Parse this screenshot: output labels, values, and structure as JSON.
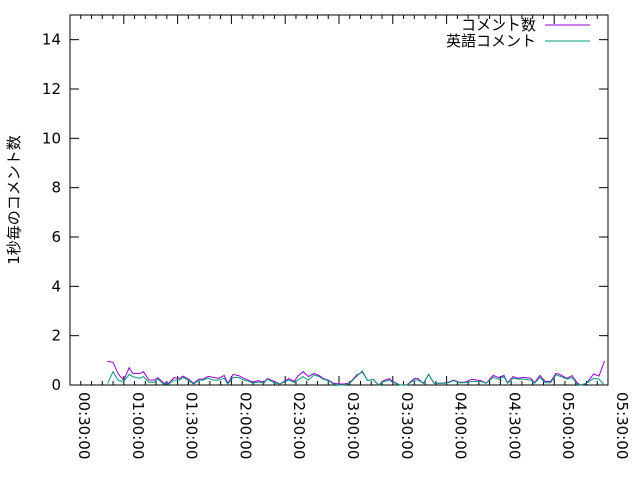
{
  "chart_data": {
    "type": "line",
    "title": "",
    "xlabel": "",
    "ylabel": "1秒毎のコメント数",
    "xlim": [
      "00:30:00",
      "05:30:00"
    ],
    "ylim": [
      0,
      15
    ],
    "x_ticks": [
      "00:30:00",
      "01:00:00",
      "01:30:00",
      "02:00:00",
      "02:30:00",
      "03:00:00",
      "03:30:00",
      "04:00:00",
      "04:30:00",
      "05:00:00",
      "05:30:00"
    ],
    "y_ticks": [
      "0",
      "2",
      "4",
      "6",
      "8",
      "10",
      "12",
      "14"
    ],
    "grid": false,
    "legend": "top-right",
    "x": [
      "00:51:00",
      "00:54:00",
      "00:57:00",
      "01:00:00",
      "01:03:00",
      "01:05:00",
      "01:09:00",
      "01:11:00",
      "01:14:00",
      "01:17:00",
      "01:19:00",
      "01:22:00",
      "01:25:00",
      "01:28:00",
      "01:31:00",
      "01:33:00",
      "01:36:00",
      "01:39:00",
      "01:42:00",
      "01:44:00",
      "01:47:00",
      "01:50:00",
      "01:53:00",
      "01:56:00",
      "01:58:00",
      "02:01:00",
      "02:04:00",
      "02:07:00",
      "02:10:00",
      "02:12:00",
      "02:15:00",
      "02:18:00",
      "02:20:00",
      "02:24:00",
      "02:27:00",
      "02:32:00",
      "02:35:00",
      "02:37:00",
      "02:40:00",
      "02:43:00",
      "02:46:00",
      "02:49:00",
      "02:51:00",
      "02:54:00",
      "02:57:00",
      "03:00:00",
      "03:03:00",
      "03:06:00",
      "03:10:00",
      "03:13:00",
      "03:16:00",
      "03:19:00",
      "03:22:00",
      "03:25:00",
      "03:28:00",
      "03:30:00",
      "03:34:00",
      "03:38:00",
      "03:42:00",
      "03:44:00",
      "03:47:00",
      "03:50:00",
      "03:53:00",
      "03:56:00",
      "04:00:00",
      "04:04:00",
      "04:07:00",
      "04:10:00",
      "04:14:00",
      "04:19:00",
      "04:22:00",
      "04:26:00",
      "04:29:00",
      "04:32:00",
      "04:34:00",
      "04:37:00",
      "04:40:00",
      "04:43:00",
      "04:47:00",
      "04:49:00",
      "04:52:00",
      "04:55:00",
      "04:58:00",
      "05:01:00",
      "05:03:00",
      "05:07:00",
      "05:10:00",
      "05:13:00",
      "05:15:00",
      "05:18:00",
      "05:22:00",
      "05:25:00",
      "05:28:00"
    ],
    "series": [
      {
        "name": "コメント数",
        "color": "#9400d3",
        "values": [
          0.96,
          0.92,
          0.43,
          0.2,
          0.7,
          0.47,
          0.47,
          0.54,
          0.2,
          0.2,
          0.3,
          0.09,
          0.07,
          0.3,
          0.26,
          0.36,
          0.24,
          0.07,
          0.24,
          0.23,
          0.35,
          0.31,
          0.27,
          0.39,
          0.07,
          0.43,
          0.38,
          0.27,
          0.18,
          0.11,
          0.18,
          0.11,
          0.26,
          0.14,
          0.04,
          0.26,
          0.14,
          0.36,
          0.54,
          0.34,
          0.47,
          0.38,
          0.27,
          0.2,
          0.07,
          0.04,
          0.04,
          0.09,
          0.41,
          0.53,
          0.18,
          0.23,
          0,
          0.18,
          0.26,
          0.14,
          0,
          0.01,
          0.26,
          0.26,
          0.07,
          0.43,
          0.07,
          0.07,
          0.09,
          0.2,
          0.11,
          0.11,
          0.23,
          0.18,
          0.07,
          0.39,
          0.3,
          0.39,
          0.09,
          0.34,
          0.27,
          0.31,
          0.27,
          0.09,
          0.39,
          0.14,
          0.14,
          0.47,
          0.43,
          0.27,
          0.38,
          0.07,
          0,
          0.07,
          0.45,
          0.36,
          0.96
        ]
      },
      {
        "name": "英語コメント",
        "color": "#009e73",
        "values": [
          0.07,
          0.54,
          0.18,
          0.15,
          0.43,
          0.34,
          0.27,
          0.34,
          0.11,
          0.11,
          0.24,
          0.04,
          0.04,
          0.2,
          0.2,
          0.31,
          0.18,
          0.04,
          0.2,
          0.2,
          0.28,
          0.2,
          0.2,
          0.27,
          0.04,
          0.31,
          0.3,
          0.2,
          0.15,
          0.07,
          0.12,
          0.07,
          0.24,
          0.09,
          0.04,
          0.2,
          0.11,
          0.2,
          0.34,
          0.2,
          0.41,
          0.34,
          0.24,
          0.18,
          0.04,
          0,
          0,
          0.07,
          0.36,
          0.57,
          0.18,
          0.23,
          0,
          0.14,
          0.2,
          0.11,
          0,
          0.01,
          0.2,
          0.2,
          0.07,
          0.43,
          0.07,
          0.07,
          0.07,
          0.18,
          0.09,
          0.09,
          0.14,
          0.14,
          0.07,
          0.31,
          0.23,
          0.34,
          0.07,
          0.27,
          0.24,
          0.24,
          0.2,
          0.07,
          0.31,
          0.09,
          0.09,
          0.41,
          0.36,
          0.24,
          0.3,
          0.03,
          0,
          0.07,
          0.27,
          0.24,
          0
        ]
      }
    ]
  }
}
